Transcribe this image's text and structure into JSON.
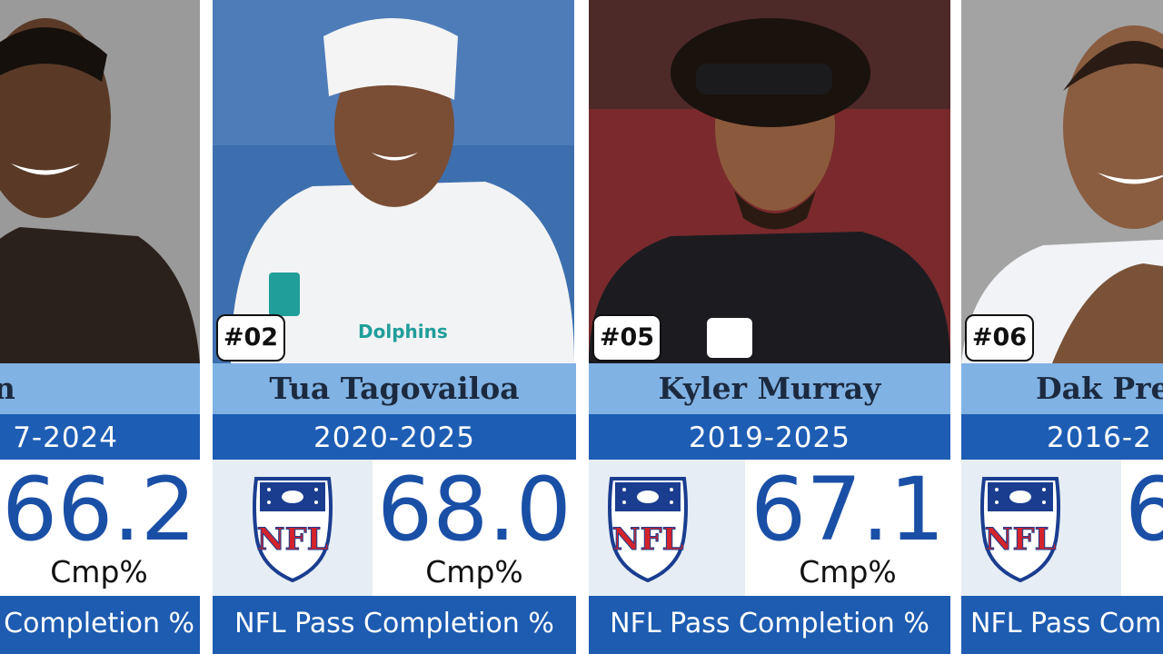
{
  "cards": [
    {
      "name": "un Watson",
      "years": "7-2024",
      "value": "66.2",
      "unit": "Cmp%",
      "caption": "Completion %"
    },
    {
      "rank": "#02",
      "name": "Tua Tagovailoa",
      "years": "2020-2025",
      "value": "68.0",
      "unit": "Cmp%",
      "caption": "NFL Pass Completion %"
    },
    {
      "rank": "#05",
      "name": "Kyler Murray",
      "years": "2019-2025",
      "value": "67.1",
      "unit": "Cmp%",
      "caption": "NFL Pass Completion %"
    },
    {
      "rank": "#06",
      "name": "Dak Pre",
      "years": "2016-2",
      "value": "6",
      "caption": "NFL Pass Com"
    }
  ]
}
